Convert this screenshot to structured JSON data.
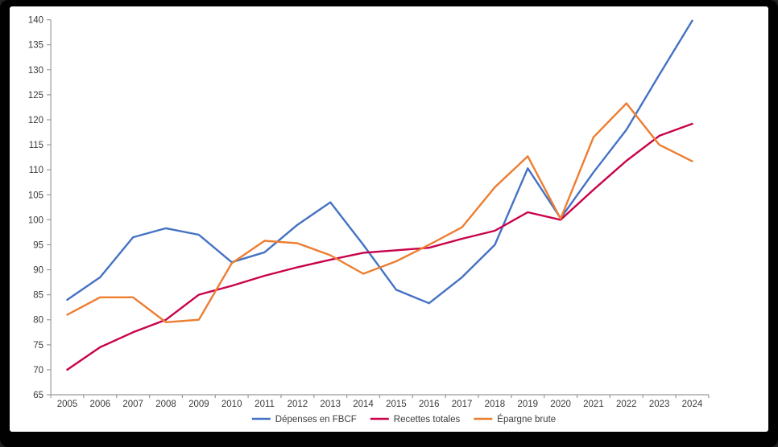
{
  "frame": {
    "background": "#010101",
    "card_background": "#ffffff"
  },
  "chart_data": {
    "type": "line",
    "title": "",
    "xlabel": "",
    "ylabel": "",
    "ylim": [
      65,
      140
    ],
    "ytick_step": 5,
    "yticks": [
      65,
      70,
      75,
      80,
      85,
      90,
      95,
      100,
      105,
      110,
      115,
      120,
      125,
      130,
      135,
      140
    ],
    "grid": false,
    "legend_position": "bottom",
    "axis_color": "#9b9b9b",
    "label_color": "#3b3b3b",
    "categories": [
      "2005",
      "2006",
      "2007",
      "2008",
      "2009",
      "2010",
      "2011",
      "2012",
      "2013",
      "2014",
      "2015",
      "2016",
      "2017",
      "2018",
      "2019",
      "2020",
      "2021",
      "2022",
      "2023",
      "2024"
    ],
    "series": [
      {
        "name": "Dépenses en FBCF",
        "color": "#4472C4",
        "values": [
          84,
          88.5,
          96.5,
          98.3,
          97,
          91.5,
          93.5,
          99,
          103.5,
          95,
          86,
          83.3,
          88.5,
          95,
          110.3,
          100.3,
          109.5,
          118,
          129,
          139.8
        ]
      },
      {
        "name": "Recettes totales",
        "color": "#C9024B",
        "values": [
          70,
          74.5,
          77.5,
          80,
          85,
          86.8,
          88.8,
          90.5,
          92,
          93.4,
          93.9,
          94.4,
          96.2,
          97.8,
          101.5,
          100,
          106,
          111.8,
          116.8,
          119.2
        ]
      },
      {
        "name": "Épargne brute",
        "color": "#ED7D31",
        "values": [
          81,
          84.5,
          84.5,
          79.5,
          80,
          91.3,
          95.8,
          95.3,
          92.9,
          89.2,
          91.7,
          95,
          98.5,
          106.5,
          112.7,
          100.2,
          116.5,
          123.3,
          115,
          111.7
        ]
      }
    ]
  }
}
